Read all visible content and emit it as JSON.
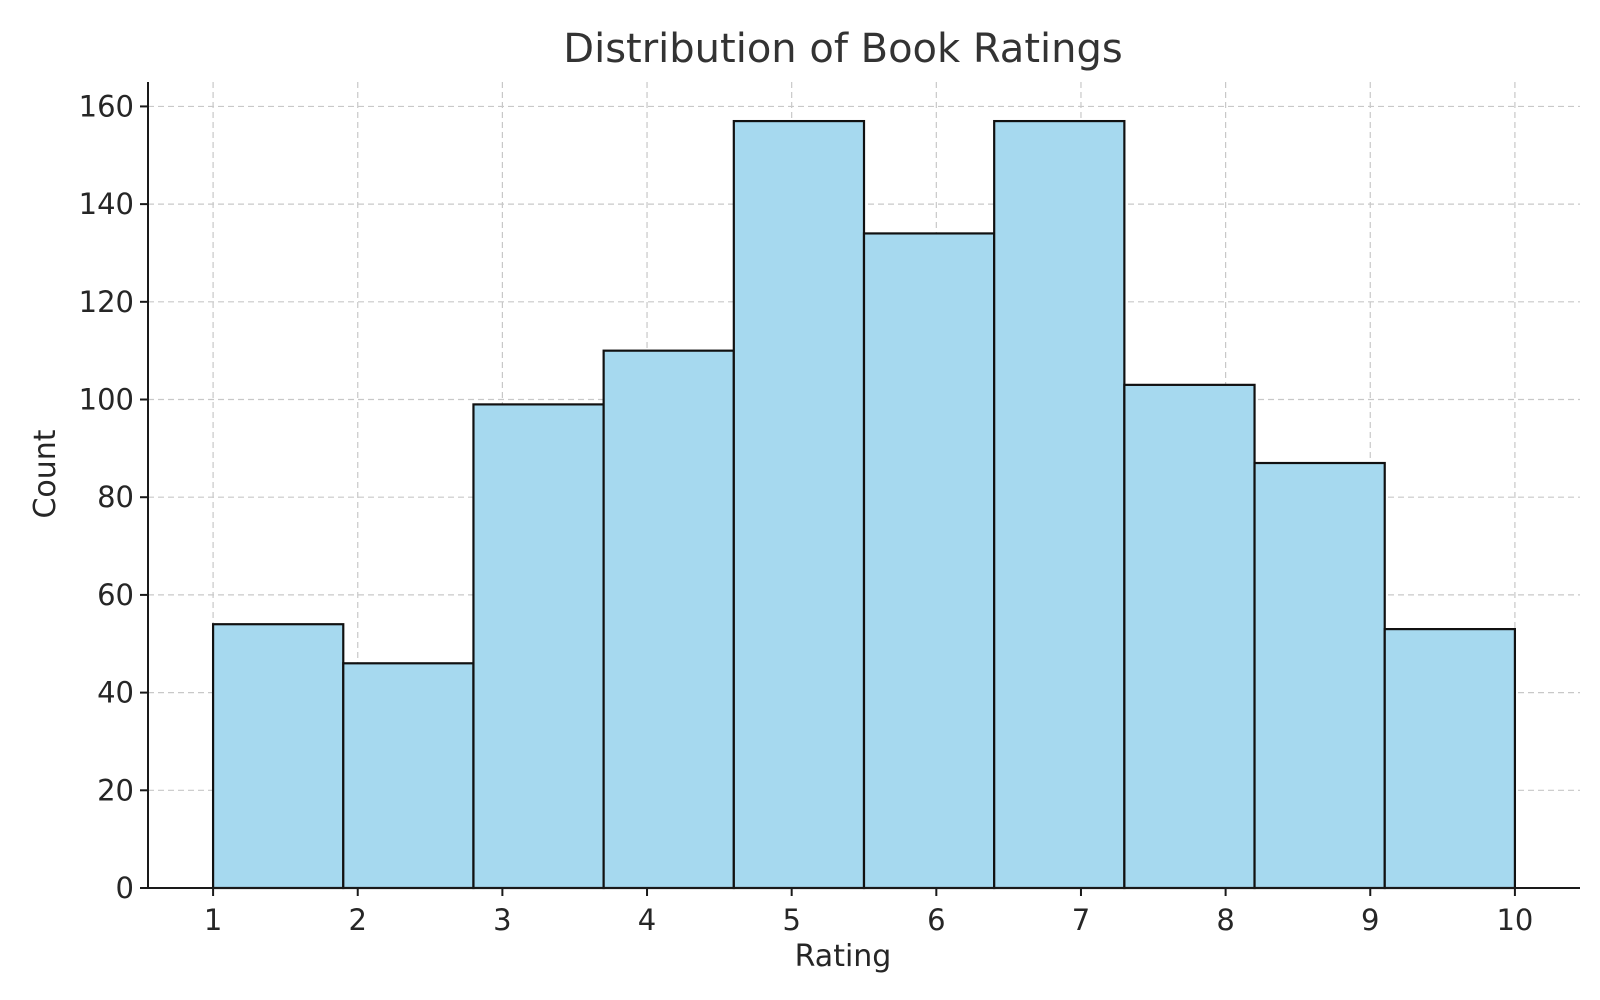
{
  "chart_data": {
    "type": "bar",
    "title": "Distribution of Book Ratings",
    "xlabel": "Rating",
    "ylabel": "Count",
    "bins": [
      {
        "start": 1.0,
        "end": 1.9,
        "count": 54
      },
      {
        "start": 1.9,
        "end": 2.8,
        "count": 46
      },
      {
        "start": 2.8,
        "end": 3.7,
        "count": 99
      },
      {
        "start": 3.7,
        "end": 4.6,
        "count": 110
      },
      {
        "start": 4.6,
        "end": 5.5,
        "count": 157
      },
      {
        "start": 5.5,
        "end": 6.4,
        "count": 134
      },
      {
        "start": 6.4,
        "end": 7.3,
        "count": 157
      },
      {
        "start": 7.3,
        "end": 8.2,
        "count": 103
      },
      {
        "start": 8.2,
        "end": 9.1,
        "count": 87
      },
      {
        "start": 9.1,
        "end": 10.0,
        "count": 53
      }
    ],
    "xticks": [
      "1",
      "2",
      "3",
      "4",
      "5",
      "6",
      "7",
      "8",
      "9",
      "10"
    ],
    "yticks": [
      "0",
      "20",
      "40",
      "60",
      "80",
      "100",
      "120",
      "140",
      "160"
    ],
    "xlim": [
      0.55,
      10.45
    ],
    "ylim": [
      0,
      165
    ],
    "grid": true,
    "bar_color": "#a6d9ef",
    "edge_color": "#111111"
  }
}
